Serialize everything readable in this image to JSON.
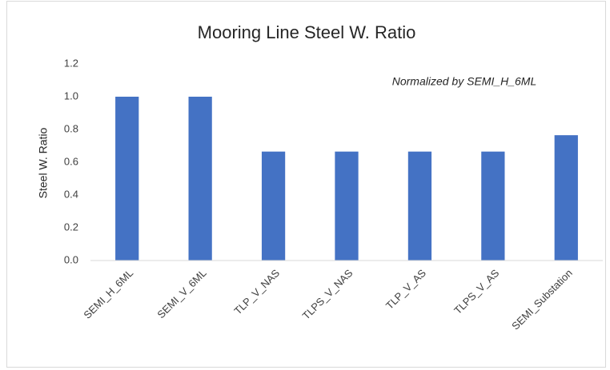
{
  "chart_data": {
    "type": "bar",
    "title": "Mooring Line Steel W. Ratio",
    "y_label": "Steel W. Ratio",
    "annotation": "Normalized by SEMI_H_6ML",
    "categories": [
      "SEMI_H_6ML",
      "SEMI_V_6ML",
      "TLP_V_NAS",
      "TLPS_V_NAS",
      "TLP_V_AS",
      "TLPS_V_AS",
      "SEMI_Substation"
    ],
    "values": [
      1.0,
      1.0,
      0.665,
      0.665,
      0.665,
      0.665,
      0.765
    ],
    "color": "#4472c4",
    "ylim": [
      0,
      1.2
    ],
    "yticks": [
      {
        "value": 0,
        "label": "0.0"
      },
      0.2,
      0.4,
      0.6,
      0.8,
      {
        "value": 1,
        "label": "1.0"
      },
      1.2
    ],
    "grid": false
  }
}
